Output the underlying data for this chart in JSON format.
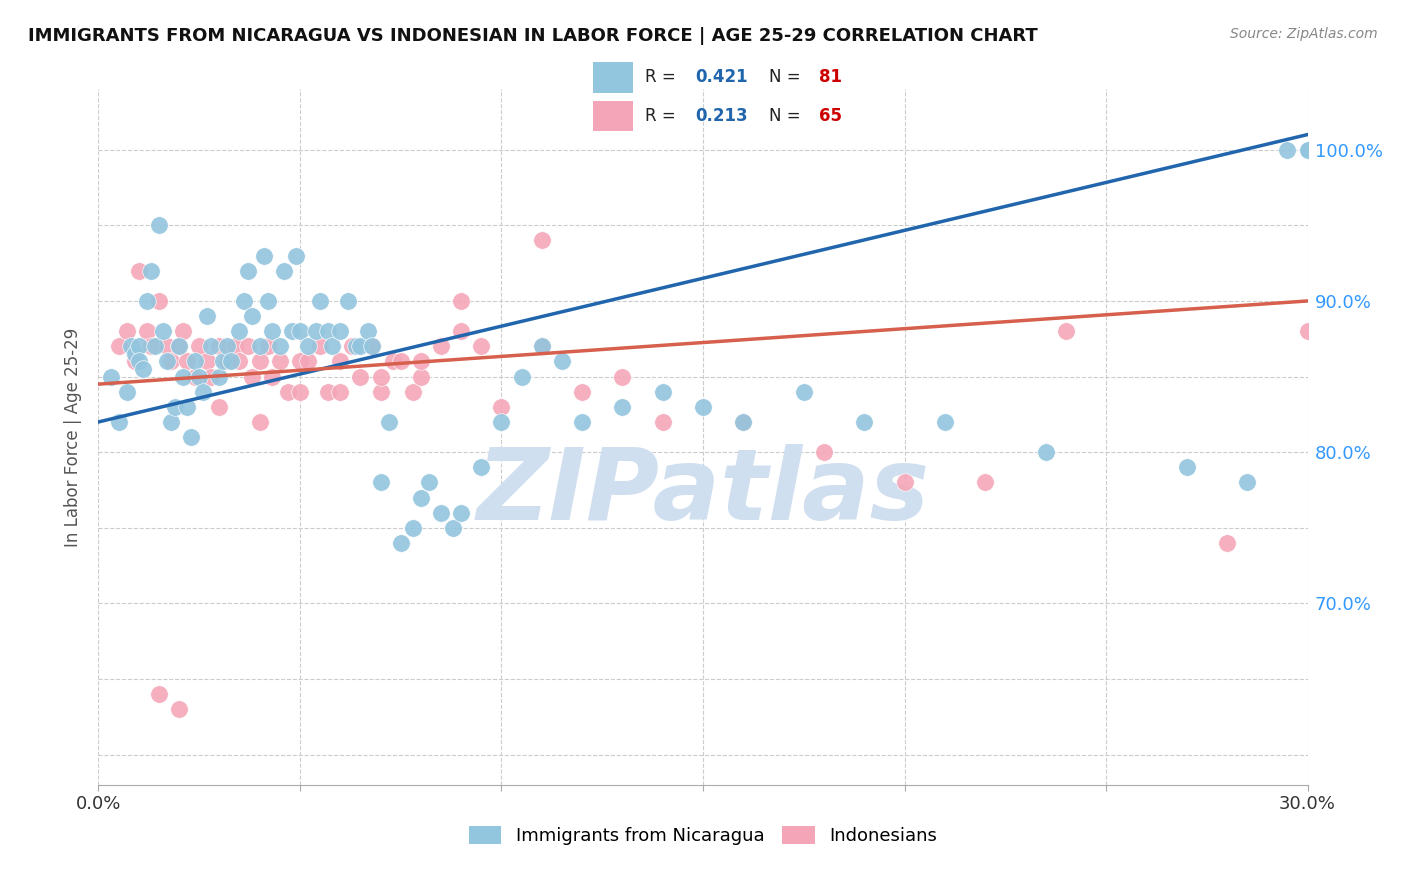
{
  "title": "IMMIGRANTS FROM NICARAGUA VS INDONESIAN IN LABOR FORCE | AGE 25-29 CORRELATION CHART",
  "source": "Source: ZipAtlas.com",
  "ylabel_label": "In Labor Force | Age 25-29",
  "xlim": [
    0.0,
    0.3
  ],
  "ylim": [
    0.58,
    1.04
  ],
  "R_nicaragua": 0.421,
  "N_nicaragua": 81,
  "R_indonesian": 0.213,
  "N_indonesian": 65,
  "blue_color": "#92C5DE",
  "blue_line_color": "#2166AC",
  "pink_color": "#F4A6B8",
  "pink_line_color": "#D6604D",
  "legend_r_color": "#2166AC",
  "legend_n_color": "#CC0000",
  "watermark_text": "ZIPatlas",
  "watermark_color": "#D0DFF0",
  "blue_scatter_x": [
    0.003,
    0.005,
    0.007,
    0.008,
    0.009,
    0.01,
    0.01,
    0.011,
    0.012,
    0.013,
    0.014,
    0.015,
    0.016,
    0.017,
    0.018,
    0.019,
    0.02,
    0.021,
    0.022,
    0.023,
    0.024,
    0.025,
    0.026,
    0.027,
    0.028,
    0.03,
    0.031,
    0.032,
    0.033,
    0.035,
    0.036,
    0.037,
    0.038,
    0.04,
    0.041,
    0.042,
    0.043,
    0.045,
    0.046,
    0.048,
    0.049,
    0.05,
    0.052,
    0.054,
    0.055,
    0.057,
    0.058,
    0.06,
    0.062,
    0.064,
    0.065,
    0.067,
    0.068,
    0.07,
    0.072,
    0.075,
    0.078,
    0.08,
    0.082,
    0.085,
    0.088,
    0.09,
    0.095,
    0.1,
    0.105,
    0.11,
    0.115,
    0.12,
    0.13,
    0.14,
    0.15,
    0.16,
    0.175,
    0.19,
    0.21,
    0.235,
    0.27,
    0.285,
    0.295,
    0.3,
    0.3
  ],
  "blue_scatter_y": [
    0.85,
    0.82,
    0.84,
    0.87,
    0.865,
    0.87,
    0.86,
    0.855,
    0.9,
    0.92,
    0.87,
    0.95,
    0.88,
    0.86,
    0.82,
    0.83,
    0.87,
    0.85,
    0.83,
    0.81,
    0.86,
    0.85,
    0.84,
    0.89,
    0.87,
    0.85,
    0.86,
    0.87,
    0.86,
    0.88,
    0.9,
    0.92,
    0.89,
    0.87,
    0.93,
    0.9,
    0.88,
    0.87,
    0.92,
    0.88,
    0.93,
    0.88,
    0.87,
    0.88,
    0.9,
    0.88,
    0.87,
    0.88,
    0.9,
    0.87,
    0.87,
    0.88,
    0.87,
    0.78,
    0.82,
    0.74,
    0.75,
    0.77,
    0.78,
    0.76,
    0.75,
    0.76,
    0.79,
    0.82,
    0.85,
    0.87,
    0.86,
    0.82,
    0.83,
    0.84,
    0.83,
    0.82,
    0.84,
    0.82,
    0.82,
    0.8,
    0.79,
    0.78,
    1.0,
    1.0,
    1.0
  ],
  "pink_scatter_x": [
    0.005,
    0.007,
    0.009,
    0.01,
    0.012,
    0.013,
    0.015,
    0.017,
    0.018,
    0.02,
    0.021,
    0.022,
    0.024,
    0.025,
    0.027,
    0.028,
    0.03,
    0.032,
    0.034,
    0.035,
    0.037,
    0.038,
    0.04,
    0.042,
    0.043,
    0.045,
    0.047,
    0.05,
    0.052,
    0.055,
    0.057,
    0.06,
    0.063,
    0.065,
    0.068,
    0.07,
    0.073,
    0.075,
    0.078,
    0.08,
    0.085,
    0.09,
    0.095,
    0.1,
    0.11,
    0.12,
    0.13,
    0.14,
    0.16,
    0.18,
    0.2,
    0.22,
    0.24,
    0.28,
    0.3,
    0.03,
    0.05,
    0.07,
    0.09,
    0.11,
    0.04,
    0.06,
    0.08,
    0.02,
    0.015
  ],
  "pink_scatter_y": [
    0.87,
    0.88,
    0.86,
    0.92,
    0.88,
    0.87,
    0.9,
    0.87,
    0.86,
    0.87,
    0.88,
    0.86,
    0.85,
    0.87,
    0.86,
    0.85,
    0.87,
    0.86,
    0.87,
    0.86,
    0.87,
    0.85,
    0.86,
    0.87,
    0.85,
    0.86,
    0.84,
    0.86,
    0.86,
    0.87,
    0.84,
    0.86,
    0.87,
    0.85,
    0.87,
    0.84,
    0.86,
    0.86,
    0.84,
    0.85,
    0.87,
    0.88,
    0.87,
    0.83,
    0.87,
    0.84,
    0.85,
    0.82,
    0.82,
    0.8,
    0.78,
    0.78,
    0.88,
    0.74,
    0.88,
    0.83,
    0.84,
    0.85,
    0.9,
    0.94,
    0.82,
    0.84,
    0.86,
    0.63,
    0.64
  ],
  "blue_line_x0": 0.0,
  "blue_line_y0": 0.82,
  "blue_line_x1": 0.3,
  "blue_line_y1": 1.01,
  "pink_line_x0": 0.0,
  "pink_line_y0": 0.845,
  "pink_line_x1": 0.3,
  "pink_line_y1": 0.9
}
